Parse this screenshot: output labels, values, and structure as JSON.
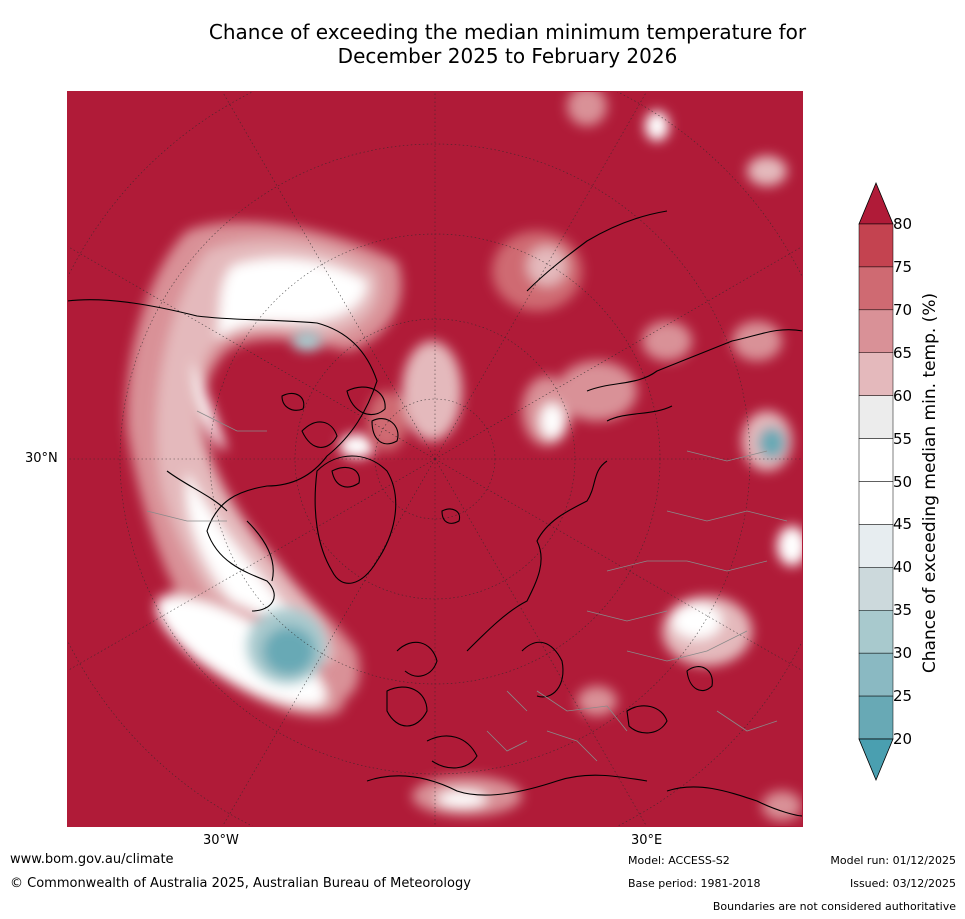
{
  "title": {
    "line1": "Chance of exceeding the median minimum temperature for",
    "line2": "December 2025 to February 2026"
  },
  "map": {
    "longitude_labels": [
      "30°W",
      "30°E"
    ],
    "latitude_labels": [
      "30°N"
    ],
    "colors": {
      "high": "#b01b38",
      "ocean_fill": "#b01b38",
      "near_normal": "#ffffff",
      "low": "#4a9fb0",
      "coastline": "#000000",
      "borders": "#8a8a8a"
    }
  },
  "colorbar": {
    "label": "Chance of exceeding median min. temp. (%)",
    "ticks": [
      "80",
      "75",
      "70",
      "65",
      "60",
      "55",
      "50",
      "45",
      "40",
      "35",
      "30",
      "25",
      "20"
    ],
    "colors": [
      "#b01b38",
      "#c44350",
      "#cf6a72",
      "#d99197",
      "#e4b9bc",
      "#ececec",
      "#ffffff",
      "#ffffff",
      "#e7edf0",
      "#ccd9dc",
      "#a8c9cd",
      "#8ab9c2",
      "#68a9b5",
      "#4a9fb0"
    ]
  },
  "footer": {
    "website": "www.bom.gov.au/climate",
    "copyright": "© Commonwealth of Australia 2025, Australian Bureau of Meteorology",
    "model": "Model: ACCESS-S2",
    "base_period": "Base period: 1981-2018",
    "model_run": "Model run: 01/12/2025",
    "issued": "Issued: 03/12/2025",
    "disclaimer": "Boundaries are not considered authoritative"
  }
}
